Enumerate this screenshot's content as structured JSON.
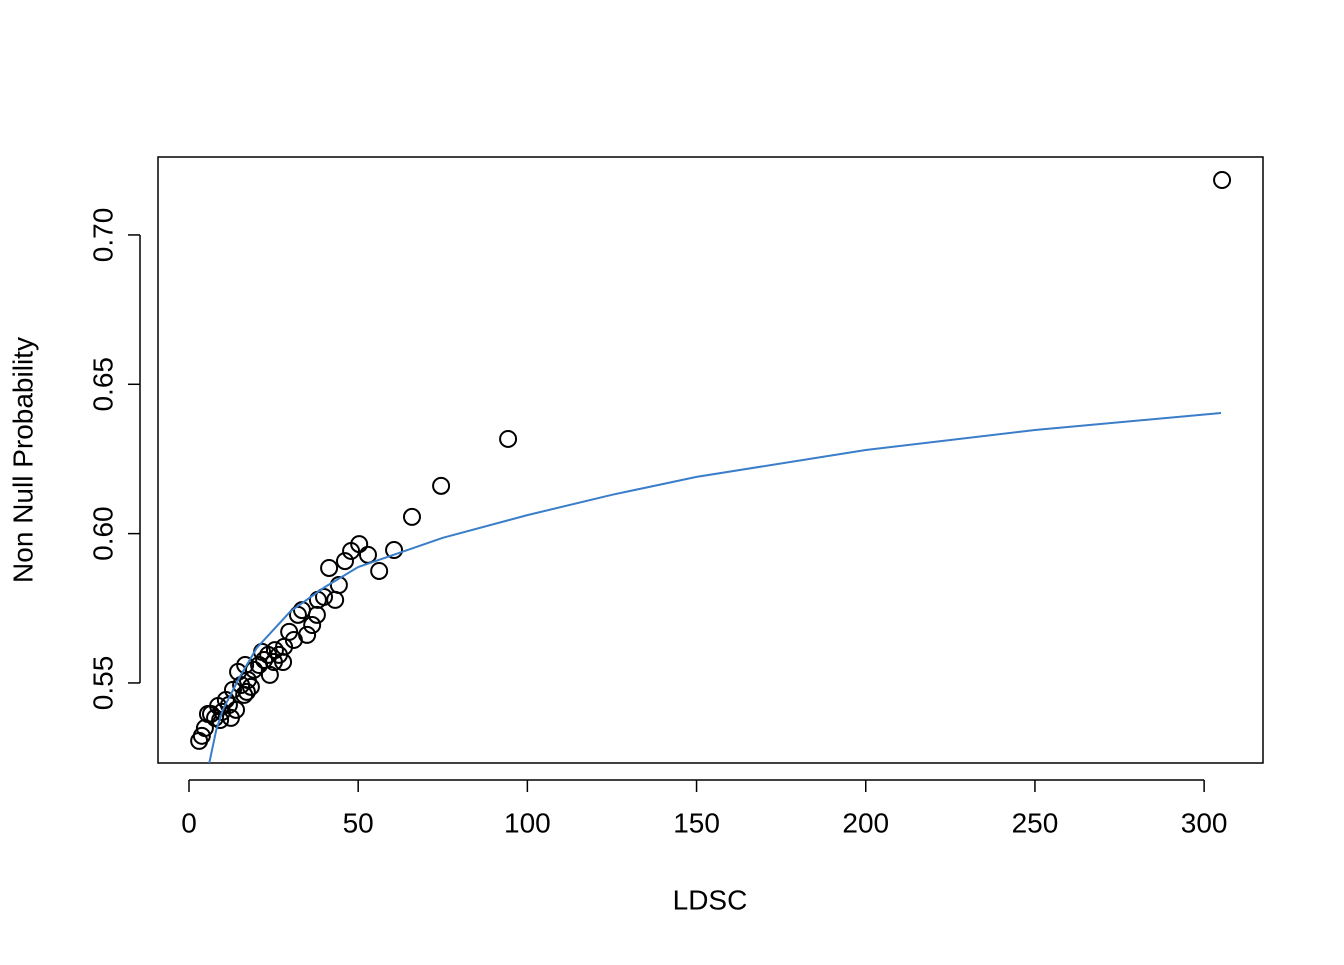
{
  "chart_data": {
    "type": "scatter",
    "xlabel": "LDSC",
    "ylabel": "Non Null Probability",
    "xlim": [
      -9.16,
      317.4
    ],
    "ylim": [
      0.5232,
      0.7261
    ],
    "xticks": [
      0,
      50,
      100,
      150,
      200,
      250,
      300
    ],
    "yticks": [
      0.55,
      {
        "value": 0.6,
        "label": "0.60"
      },
      0.65,
      {
        "value": 0.7,
        "label": "0.70"
      }
    ],
    "series": [
      {
        "type": "scatter",
        "color": "#000000",
        "x": [
          305.3,
          94.3,
          74.5,
          65.9,
          60.6,
          56.2,
          52.9,
          50.3,
          47.9,
          46.1,
          44.3,
          43.2,
          41.4,
          39.9,
          38.1,
          37.8,
          36.4,
          34.9,
          33.4,
          32.2,
          31.0,
          29.6,
          28.1,
          27.8,
          26.6,
          25.1,
          23.9,
          23.4,
          22.2,
          20.7,
          19.2,
          18.3,
          17.4,
          16.3,
          15.4,
          14.5,
          13.9,
          13.0,
          11.8,
          10.9,
          9.8,
          8.6,
          7.7,
          6.5,
          5.6,
          4.7,
          3.8,
          3.0,
          16.6,
          21.6,
          25.4,
          12.4,
          17.1,
          9.2
        ],
        "values": [
          0.7184,
          0.6317,
          0.616,
          0.6056,
          0.5945,
          0.5875,
          0.5929,
          0.5965,
          0.5942,
          0.5908,
          0.5828,
          0.5778,
          0.5885,
          0.5788,
          0.5778,
          0.5728,
          0.5694,
          0.5661,
          0.5744,
          0.5728,
          0.5644,
          0.5671,
          0.5621,
          0.557,
          0.5594,
          0.557,
          0.5527,
          0.5594,
          0.5577,
          0.556,
          0.5544,
          0.5487,
          0.551,
          0.546,
          0.5493,
          0.5537,
          0.541,
          0.5477,
          0.5426,
          0.5443,
          0.5403,
          0.5423,
          0.5383,
          0.5396,
          0.5396,
          0.5349,
          0.5323,
          0.5306,
          0.556,
          0.5604,
          0.561,
          0.5383,
          0.547,
          0.5376
        ]
      },
      {
        "type": "line",
        "color": "#3a7dc9",
        "x": [
          6,
          8,
          10,
          15,
          20,
          30,
          40,
          50,
          75,
          100,
          125,
          150,
          200,
          250,
          305
        ],
        "values": [
          0.5232,
          0.534,
          0.541,
          0.552,
          0.5617,
          0.574,
          0.582,
          0.5888,
          0.5986,
          0.6062,
          0.613,
          0.619,
          0.628,
          0.6347,
          0.6404
        ]
      }
    ]
  }
}
